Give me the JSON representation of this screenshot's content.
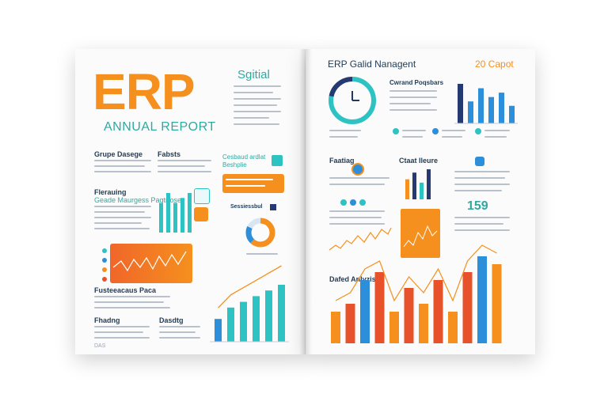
{
  "left_page": {
    "title": "ERP",
    "subtitle": "ANNUAL REPORT",
    "top_right_heading": "Sgitial",
    "section_1": "Grupe Dasege",
    "section_2": "Fabsts",
    "section_3": "Flerauing",
    "section_3_sub": "Geade Maurgess Pagtrfose",
    "callout_heading": "Cesbaud ardlat Beshplie",
    "section_4": "Fusteeacaus Paca",
    "section_5": "Fhadng",
    "section_6": "Dasdtg",
    "footer": "DAS",
    "bar_chart_small": {
      "values": [
        6,
        8,
        6,
        7,
        8
      ]
    },
    "bar_chart_large": {
      "values": [
        4,
        6,
        7,
        8,
        9,
        10
      ]
    },
    "donut": {
      "value": 0.62
    }
  },
  "right_page": {
    "title": "ERP Galid Nanagent",
    "top_right": "20 Capot",
    "header_sub": "Cwrand Poqsbars",
    "block_1": "Faatiag",
    "block_2": "Ctaat Ileure",
    "big_number": "159",
    "bottom_heading": "Dafed Anlyzis",
    "gauge": {
      "value": 0.78
    },
    "top_bars": {
      "values": [
        9,
        5,
        8,
        6,
        7,
        4
      ]
    },
    "mini_bars": {
      "values": [
        6,
        8,
        5,
        9
      ]
    },
    "bottom_bars": {
      "values": [
        4,
        5,
        8,
        9,
        4,
        7,
        5,
        8,
        4,
        9,
        11,
        10
      ]
    }
  },
  "colors": {
    "orange": "#f5901e",
    "teal": "#2ec3c3",
    "blue": "#2d8fd9",
    "navy": "#253a73",
    "red": "#e8522b"
  }
}
